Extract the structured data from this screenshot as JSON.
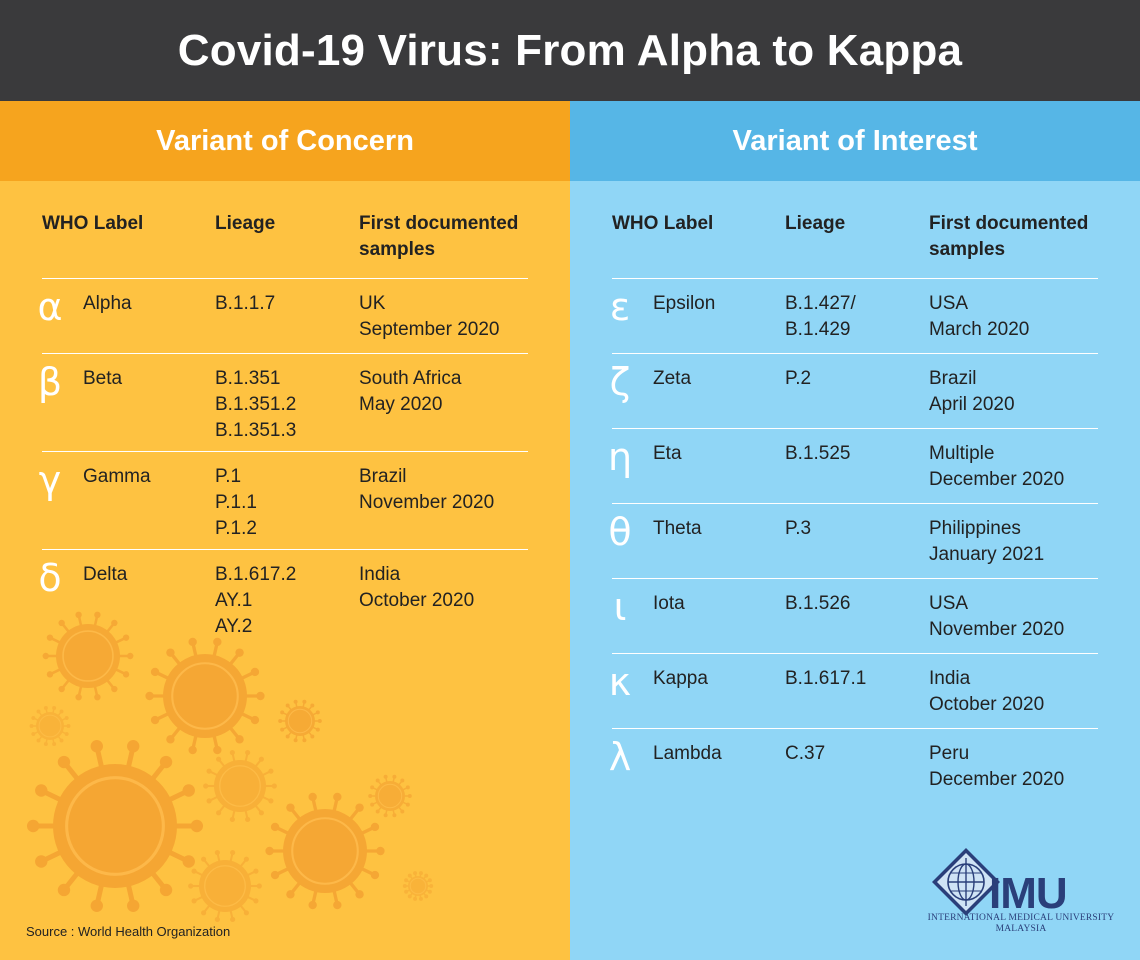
{
  "title": "Covid-19 Virus: From Alpha to Kappa",
  "colors": {
    "dark": "#3a3a3c",
    "orange_header": "#f6a41e",
    "orange_body": "#fec241",
    "blue_header": "#56b6e6",
    "blue_body": "#90d6f6",
    "virus": "#f5a533"
  },
  "columns": {
    "label": "WHO Label",
    "lineage": "Lieage",
    "first": [
      "First documented",
      "samples"
    ]
  },
  "concern": {
    "heading": "Variant of Concern",
    "rows": [
      {
        "symbol": "α",
        "name": "Alpha",
        "lineage": [
          "B.1.1.7"
        ],
        "first": [
          "UK",
          "September 2020"
        ]
      },
      {
        "symbol": "β",
        "name": "Beta",
        "lineage": [
          "B.1.351",
          "B.1.351.2",
          "B.1.351.3"
        ],
        "first": [
          "South Africa",
          "May 2020"
        ]
      },
      {
        "symbol": "γ",
        "name": "Gamma",
        "lineage": [
          "P.1",
          "P.1.1",
          "P.1.2"
        ],
        "first": [
          "Brazil",
          "November 2020"
        ]
      },
      {
        "symbol": "δ",
        "name": "Delta",
        "lineage": [
          "B.1.617.2",
          "AY.1",
          "AY.2"
        ],
        "first": [
          "India",
          "October 2020"
        ]
      }
    ]
  },
  "interest": {
    "heading": "Variant of Interest",
    "rows": [
      {
        "symbol": "ε",
        "name": "Epsilon",
        "lineage": [
          "B.1.427/",
          "B.1.429"
        ],
        "first": [
          "USA",
          "March 2020"
        ]
      },
      {
        "symbol": "ζ",
        "name": "Zeta",
        "lineage": [
          "P.2"
        ],
        "first": [
          "Brazil",
          "April 2020"
        ]
      },
      {
        "symbol": "η",
        "name": "Eta",
        "lineage": [
          "B.1.525"
        ],
        "first": [
          "Multiple",
          "December 2020"
        ]
      },
      {
        "symbol": "θ",
        "name": "Theta",
        "lineage": [
          "P.3"
        ],
        "first": [
          "Philippines",
          "January 2021"
        ]
      },
      {
        "symbol": "ι",
        "name": "Iota",
        "lineage": [
          "B.1.526"
        ],
        "first": [
          "USA",
          "November 2020"
        ]
      },
      {
        "symbol": "κ",
        "name": "Kappa",
        "lineage": [
          "B.1.617.1"
        ],
        "first": [
          "India",
          "October 2020"
        ]
      },
      {
        "symbol": "λ",
        "name": "Lambda",
        "lineage": [
          "C.37"
        ],
        "first": [
          "Peru",
          "December 2020"
        ]
      }
    ]
  },
  "source": "Source : World Health Organization",
  "logo": {
    "mark": "IMU",
    "line1": "INTERNATIONAL MEDICAL UNIVERSITY",
    "line2": "MALAYSIA"
  }
}
